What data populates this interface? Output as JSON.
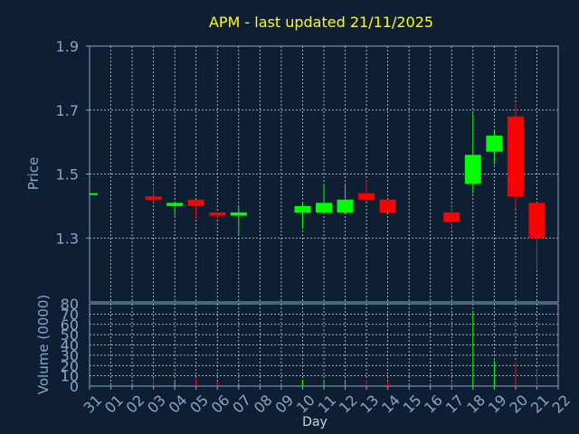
{
  "chart_data": [
    {
      "type": "candlestick",
      "title": "APM - last updated 21/11/2025",
      "ylabel": "Price",
      "ylim": [
        1.1,
        1.9
      ],
      "yticks": [
        "1.9",
        "1.7",
        "1.5",
        "1.3"
      ],
      "grid": true,
      "up_color": "#00ff00",
      "down_color": "#ff0000",
      "categories": [
        "31",
        "01",
        "02",
        "03",
        "04",
        "05",
        "06",
        "07",
        "08",
        "09",
        "10",
        "11",
        "12",
        "13",
        "14",
        "15",
        "16",
        "17",
        "18",
        "19",
        "20",
        "21",
        "22"
      ],
      "candles": [
        {
          "x": "31",
          "open": 1.44,
          "high": 1.44,
          "low": 1.44,
          "close": 1.44
        },
        {
          "x": "03",
          "open": 1.43,
          "high": 1.46,
          "low": 1.41,
          "close": 1.42
        },
        {
          "x": "04",
          "open": 1.4,
          "high": 1.41,
          "low": 1.37,
          "close": 1.41
        },
        {
          "x": "05",
          "open": 1.42,
          "high": 1.42,
          "low": 1.36,
          "close": 1.4
        },
        {
          "x": "06",
          "open": 1.38,
          "high": 1.38,
          "low": 1.36,
          "close": 1.37
        },
        {
          "x": "07",
          "open": 1.37,
          "high": 1.4,
          "low": 1.31,
          "close": 1.38
        },
        {
          "x": "10",
          "open": 1.38,
          "high": 1.41,
          "low": 1.33,
          "close": 1.4
        },
        {
          "x": "11",
          "open": 1.38,
          "high": 1.47,
          "low": 1.38,
          "close": 1.41
        },
        {
          "x": "12",
          "open": 1.38,
          "high": 1.47,
          "low": 1.38,
          "close": 1.42
        },
        {
          "x": "13",
          "open": 1.44,
          "high": 1.48,
          "low": 1.42,
          "close": 1.42
        },
        {
          "x": "14",
          "open": 1.42,
          "high": 1.42,
          "low": 1.38,
          "close": 1.38
        },
        {
          "x": "17",
          "open": 1.38,
          "high": 1.4,
          "low": 1.33,
          "close": 1.35
        },
        {
          "x": "18",
          "open": 1.47,
          "high": 1.69,
          "low": 1.44,
          "close": 1.56
        },
        {
          "x": "19",
          "open": 1.57,
          "high": 1.64,
          "low": 1.53,
          "close": 1.62
        },
        {
          "x": "20",
          "open": 1.68,
          "high": 1.72,
          "low": 1.39,
          "close": 1.43
        },
        {
          "x": "21",
          "open": 1.41,
          "high": 1.41,
          "low": 1.2,
          "close": 1.3
        }
      ]
    },
    {
      "type": "bar",
      "ylabel": "Volume (0000)",
      "xlabel": "Day",
      "ylim": [
        0,
        80
      ],
      "yticks": [
        "80",
        "70",
        "60",
        "50",
        "40",
        "30",
        "20",
        "10",
        "0"
      ],
      "grid": true,
      "categories": [
        "31",
        "01",
        "02",
        "03",
        "04",
        "05",
        "06",
        "07",
        "08",
        "09",
        "10",
        "11",
        "12",
        "13",
        "14",
        "15",
        "16",
        "17",
        "18",
        "19",
        "20",
        "21",
        "22"
      ],
      "bars": [
        {
          "x": "31",
          "value": 0.5,
          "color": "#00ff00"
        },
        {
          "x": "03",
          "value": 8,
          "color": "#ff0000"
        },
        {
          "x": "04",
          "value": 5,
          "color": "#00ff00"
        },
        {
          "x": "05",
          "value": 7,
          "color": "#ff0000"
        },
        {
          "x": "06",
          "value": 4,
          "color": "#ff0000"
        },
        {
          "x": "07",
          "value": 3,
          "color": "#00ff00"
        },
        {
          "x": "10",
          "value": 6,
          "color": "#00ff00"
        },
        {
          "x": "11",
          "value": 5,
          "color": "#00ff00"
        },
        {
          "x": "12",
          "value": 5,
          "color": "#00ff00"
        },
        {
          "x": "13",
          "value": 6,
          "color": "#ff0000"
        },
        {
          "x": "14",
          "value": 5,
          "color": "#ff0000"
        },
        {
          "x": "17",
          "value": 5,
          "color": "#ff0000"
        },
        {
          "x": "18",
          "value": 73,
          "color": "#00ff00"
        },
        {
          "x": "19",
          "value": 25,
          "color": "#00ff00"
        },
        {
          "x": "20",
          "value": 24,
          "color": "#ff0000"
        },
        {
          "x": "21",
          "value": 16,
          "color": "#ff0000"
        }
      ]
    }
  ]
}
